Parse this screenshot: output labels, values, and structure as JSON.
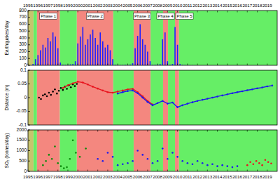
{
  "chart_data": [
    {
      "type": "bar",
      "y_label": "Earthquakes/day",
      "color": "#2020ff",
      "xlim": [
        1995,
        2020
      ],
      "xticks": [
        1995,
        1996,
        1997,
        1998,
        1999,
        2000,
        2001,
        2002,
        2003,
        2004,
        2005,
        2006,
        2007,
        2008,
        2009,
        2010,
        2011,
        2012,
        2013,
        2014,
        2015,
        2016,
        2017,
        2018,
        2019
      ],
      "ylim": [
        0,
        800
      ],
      "yticks": [
        0,
        100,
        200,
        300,
        400,
        500,
        600,
        700,
        800
      ],
      "grid": false,
      "bands": [
        {
          "start": 1995,
          "end": 1995.55,
          "color": "#c8c46e"
        },
        {
          "start": 1995.55,
          "end": 1995.9,
          "color": "#66ee66"
        },
        {
          "start": 1995.9,
          "end": 1998.2,
          "color": "#f4877f",
          "label": "Phase 1"
        },
        {
          "start": 1998.2,
          "end": 1999.9,
          "color": "#66ee66"
        },
        {
          "start": 1999.9,
          "end": 2003.55,
          "color": "#f4877f",
          "label": "Phase 2"
        },
        {
          "start": 2003.55,
          "end": 2005.6,
          "color": "#66ee66"
        },
        {
          "start": 2005.6,
          "end": 2007.3,
          "color": "#f4877f",
          "label": "Phase 3"
        },
        {
          "start": 2007.3,
          "end": 2008.55,
          "color": "#66ee66"
        },
        {
          "start": 2008.55,
          "end": 2009.05,
          "color": "#f4877f",
          "label": "Phase 4"
        },
        {
          "start": 2009.05,
          "end": 2009.75,
          "color": "#66ee66"
        },
        {
          "start": 2009.75,
          "end": 2010.15,
          "color": "#f4877f",
          "label": "Phase 5"
        },
        {
          "start": 2010.15,
          "end": 2020,
          "color": "#66ee66"
        }
      ],
      "x": [
        1995.5,
        1995.75,
        1996,
        1996.25,
        1996.5,
        1996.75,
        1997,
        1997.25,
        1997.5,
        1997.75,
        1998,
        1998.25,
        1998.5,
        1998.75,
        1999,
        1999.25,
        1999.5,
        1999.75,
        2000,
        2000.25,
        2000.5,
        2000.75,
        2001,
        2001.25,
        2001.5,
        2001.75,
        2002,
        2002.25,
        2002.5,
        2002.75,
        2003,
        2003.25,
        2003.5,
        2003.75,
        2004,
        2004.25,
        2004.5,
        2004.75,
        2005,
        2005.25,
        2005.5,
        2005.75,
        2006,
        2006.25,
        2006.5,
        2006.75,
        2007,
        2007.25,
        2007.5,
        2007.75,
        2008,
        2008.25,
        2008.5,
        2008.75,
        2009,
        2009.25,
        2009.5,
        2009.75,
        2010,
        2010.25,
        2010.5,
        2010.75,
        2011,
        2011.25,
        2011.5,
        2011.75
      ],
      "values": [
        20,
        90,
        150,
        220,
        300,
        260,
        400,
        350,
        480,
        420,
        250,
        40,
        10,
        8,
        10,
        15,
        20,
        60,
        320,
        420,
        560,
        300,
        380,
        450,
        520,
        400,
        300,
        480,
        350,
        260,
        300,
        220,
        90,
        10,
        8,
        5,
        6,
        10,
        8,
        12,
        30,
        250,
        430,
        600,
        380,
        300,
        200,
        60,
        8,
        10,
        12,
        20,
        380,
        480,
        60,
        10,
        20,
        560,
        300,
        20,
        8,
        5,
        4,
        3,
        3,
        2
      ]
    },
    {
      "type": "scatter",
      "y_label": "Distance (m)",
      "tick_labels": "y",
      "xlim": [
        1995,
        2020
      ],
      "ylim": [
        -0.1,
        0.1
      ],
      "yticks": [
        -0.1,
        -0.05,
        0,
        0.05,
        0.1
      ],
      "grid": false,
      "series": [
        {
          "color": "#000000",
          "marker": "circle",
          "line_style": "none",
          "x": [
            1996.1,
            1996.3,
            1996.5,
            1996.7,
            1996.9,
            1997.1,
            1997.3,
            1997.5,
            1997.7,
            1997.9,
            1998.1,
            1998.3,
            1998.5,
            1998.7,
            1998.9,
            1999.1,
            1999.3,
            1999.5,
            1999.7,
            1999.9
          ],
          "values": [
            0,
            -0.005,
            0.008,
            0.012,
            0.005,
            0.018,
            0.01,
            0.022,
            0.03,
            0.015,
            0.025,
            0.035,
            0.028,
            0.04,
            0.032,
            0.045,
            0.038,
            0.048,
            0.042,
            0.05
          ]
        },
        {
          "color": "#e8141e",
          "marker": "circle",
          "line_style": "solid",
          "x": [
            1998.5,
            1999,
            1999.5,
            2000,
            2000.5,
            2001,
            2001.5,
            2002,
            2002.5,
            2003,
            2003.5,
            2004,
            2004.5,
            2005,
            2005.5,
            2006,
            2006.5,
            2007,
            2007.5
          ],
          "values": [
            0.035,
            0.045,
            0.052,
            0.058,
            0.055,
            0.048,
            0.04,
            0.033,
            0.026,
            0.02,
            0.018,
            0.022,
            0.026,
            0.03,
            0.032,
            0.02,
            0.005,
            -0.012,
            -0.025
          ]
        },
        {
          "color": "#1a1aee",
          "marker": "circle",
          "line_style": "solid",
          "x": [
            2004,
            2004.5,
            2005,
            2005.5,
            2006,
            2006.5,
            2007,
            2007.5,
            2008,
            2008.5,
            2009,
            2009.5,
            2010,
            2010.5,
            2011,
            2011.5,
            2012,
            2012.5,
            2013,
            2013.5,
            2014,
            2014.5,
            2015,
            2015.5,
            2016,
            2016.5,
            2017,
            2017.5,
            2018,
            2018.5,
            2019,
            2019.5
          ],
          "values": [
            0.015,
            0.02,
            0.024,
            0.026,
            0.016,
            0,
            -0.016,
            -0.028,
            -0.02,
            -0.012,
            -0.022,
            -0.018,
            -0.035,
            -0.028,
            -0.022,
            -0.017,
            -0.012,
            -0.008,
            -0.004,
            0,
            0.004,
            0.008,
            0.012,
            0.016,
            0.02,
            0.023,
            0.027,
            0.03,
            0.034,
            0.037,
            0.041,
            0.044
          ]
        }
      ]
    },
    {
      "type": "scatter",
      "y_label": "SO₂ (tonnes/day)",
      "xlim": [
        1995,
        2020
      ],
      "xticks": [
        1995,
        1996,
        1997,
        1998,
        1999,
        2000,
        2001,
        2002,
        2003,
        2004,
        2005,
        2006,
        2007,
        2008,
        2009,
        2010,
        2011,
        2012,
        2013,
        2014,
        2015,
        2016,
        2017,
        2018,
        2019
      ],
      "ylim": [
        0,
        2000
      ],
      "yticks": [
        0,
        500,
        1000,
        1500,
        2000
      ],
      "grid": false,
      "series": [
        {
          "color": "#0a8a0a",
          "marker": "circle",
          "line_style": "none",
          "x": [
            1996.5,
            1996.8,
            1997.1,
            1997.4,
            1997.7,
            1998,
            1998.3,
            1998.6,
            1998.9,
            1999.2,
            1999.5,
            1999.8,
            2000.2,
            2000.8
          ],
          "values": [
            300,
            500,
            800,
            600,
            1200,
            400,
            250,
            150,
            200,
            600,
            1500,
            900,
            700,
            1100
          ]
        },
        {
          "color": "#1a1aee",
          "marker": "circle",
          "line_style": "none",
          "x": [
            2002,
            2002.5,
            2003,
            2003.5,
            2004,
            2004.5,
            2005,
            2005.5,
            2006,
            2006.5,
            2007,
            2007.5,
            2008,
            2008.5,
            2009,
            2009.5,
            2010,
            2010.5,
            2011,
            2011.5,
            2012,
            2012.5,
            2013,
            2013.5,
            2014,
            2014.5,
            2015,
            2015.5,
            2016
          ],
          "values": [
            600,
            500,
            900,
            700,
            300,
            350,
            400,
            500,
            1000,
            800,
            600,
            400,
            500,
            1100,
            600,
            900,
            700,
            500,
            400,
            350,
            500,
            400,
            300,
            350,
            250,
            300,
            250,
            200,
            250
          ]
        },
        {
          "color": "#e8141e",
          "marker": "circle",
          "line_style": "none",
          "x": [
            2017,
            2017.3,
            2017.6,
            2017.9,
            2018.2,
            2018.5,
            2018.8,
            2019.1,
            2019.4
          ],
          "values": [
            300,
            450,
            350,
            500,
            400,
            300,
            550,
            450,
            380
          ]
        }
      ]
    }
  ]
}
